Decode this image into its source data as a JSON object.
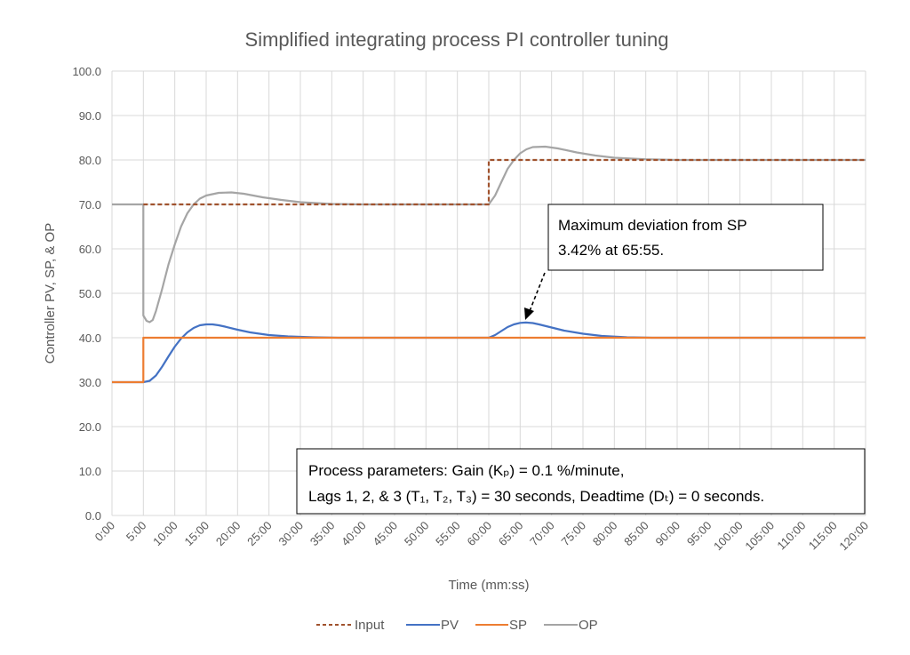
{
  "chart_data": {
    "type": "line",
    "title": "Simplified integrating process PI controller tuning",
    "xlabel": "Time (mm:ss)",
    "ylabel": "Controller PV, SP, & OP",
    "xlim": [
      0,
      120
    ],
    "ylim": [
      0,
      100
    ],
    "x_tick_labels": [
      "0:00",
      "5:00",
      "10:00",
      "15:00",
      "20:00",
      "25:00",
      "30:00",
      "35:00",
      "40:00",
      "45:00",
      "50:00",
      "55:00",
      "60:00",
      "65:00",
      "70:00",
      "75:00",
      "80:00",
      "85:00",
      "90:00",
      "95:00",
      "100:00",
      "105:00",
      "110:00",
      "115:00",
      "120:00"
    ],
    "y_tick_labels": [
      "0.0",
      "10.0",
      "20.0",
      "30.0",
      "40.0",
      "50.0",
      "60.0",
      "70.0",
      "80.0",
      "90.0",
      "100.0"
    ],
    "grid": true,
    "legend_position": "bottom",
    "series": [
      {
        "name": "Input",
        "color": "#a0522d",
        "dash": true,
        "points": [
          [
            0,
            70
          ],
          [
            60,
            70
          ],
          [
            60,
            80
          ],
          [
            120,
            80
          ]
        ]
      },
      {
        "name": "PV",
        "color": "#4472c4",
        "dash": false,
        "points": [
          [
            0,
            30
          ],
          [
            5,
            30
          ],
          [
            6,
            30.3
          ],
          [
            7,
            31.5
          ],
          [
            8,
            33.5
          ],
          [
            9,
            35.8
          ],
          [
            10,
            38
          ],
          [
            11,
            39.8
          ],
          [
            12,
            41.2
          ],
          [
            13,
            42.2
          ],
          [
            14,
            42.8
          ],
          [
            15,
            43
          ],
          [
            16,
            43
          ],
          [
            17,
            42.8
          ],
          [
            18,
            42.5
          ],
          [
            20,
            41.8
          ],
          [
            22,
            41.2
          ],
          [
            25,
            40.6
          ],
          [
            28,
            40.3
          ],
          [
            32,
            40.1
          ],
          [
            36,
            40
          ],
          [
            60,
            40
          ],
          [
            61,
            40.6
          ],
          [
            62,
            41.5
          ],
          [
            63,
            42.4
          ],
          [
            64,
            43
          ],
          [
            65,
            43.35
          ],
          [
            65.92,
            43.42
          ],
          [
            67,
            43.3
          ],
          [
            68,
            43
          ],
          [
            70,
            42.3
          ],
          [
            72,
            41.6
          ],
          [
            75,
            40.9
          ],
          [
            78,
            40.4
          ],
          [
            82,
            40.1
          ],
          [
            86,
            40
          ],
          [
            120,
            40
          ]
        ]
      },
      {
        "name": "SP",
        "color": "#ed7d31",
        "dash": false,
        "points": [
          [
            0,
            30
          ],
          [
            5,
            30
          ],
          [
            5,
            40
          ],
          [
            120,
            40
          ]
        ]
      },
      {
        "name": "OP",
        "color": "#a5a5a5",
        "dash": false,
        "points": [
          [
            0,
            70
          ],
          [
            5,
            70
          ],
          [
            5,
            45
          ],
          [
            5.5,
            43.8
          ],
          [
            6,
            43.5
          ],
          [
            6.5,
            44
          ],
          [
            7,
            46
          ],
          [
            8,
            51
          ],
          [
            9,
            56.5
          ],
          [
            10,
            61
          ],
          [
            11,
            65
          ],
          [
            12,
            68
          ],
          [
            13,
            70
          ],
          [
            14,
            71.3
          ],
          [
            15,
            72
          ],
          [
            17,
            72.6
          ],
          [
            19,
            72.7
          ],
          [
            21,
            72.4
          ],
          [
            24,
            71.6
          ],
          [
            27,
            71
          ],
          [
            30,
            70.5
          ],
          [
            35,
            70.1
          ],
          [
            40,
            70
          ],
          [
            60,
            70
          ],
          [
            61,
            72
          ],
          [
            62,
            75
          ],
          [
            63,
            78
          ],
          [
            64,
            80
          ],
          [
            65,
            81.5
          ],
          [
            66,
            82.4
          ],
          [
            67,
            82.9
          ],
          [
            69,
            83
          ],
          [
            71,
            82.6
          ],
          [
            74,
            81.7
          ],
          [
            77,
            81
          ],
          [
            80,
            80.5
          ],
          [
            85,
            80.15
          ],
          [
            90,
            80
          ],
          [
            120,
            80
          ]
        ]
      }
    ],
    "annotations": {
      "max_deviation": {
        "line1": "Maximum deviation from SP",
        "line2": "3.42% at 65:55.",
        "points_to": [
          65.92,
          43.42
        ]
      },
      "params": {
        "line1": "Process parameters:  Gain (Kₚ) = 0.1 %/minute,",
        "line2": "Lags 1, 2, & 3 (T₁, T₂, T₃) = 30 seconds, Deadtime (Dₜ) = 0 seconds."
      }
    }
  }
}
